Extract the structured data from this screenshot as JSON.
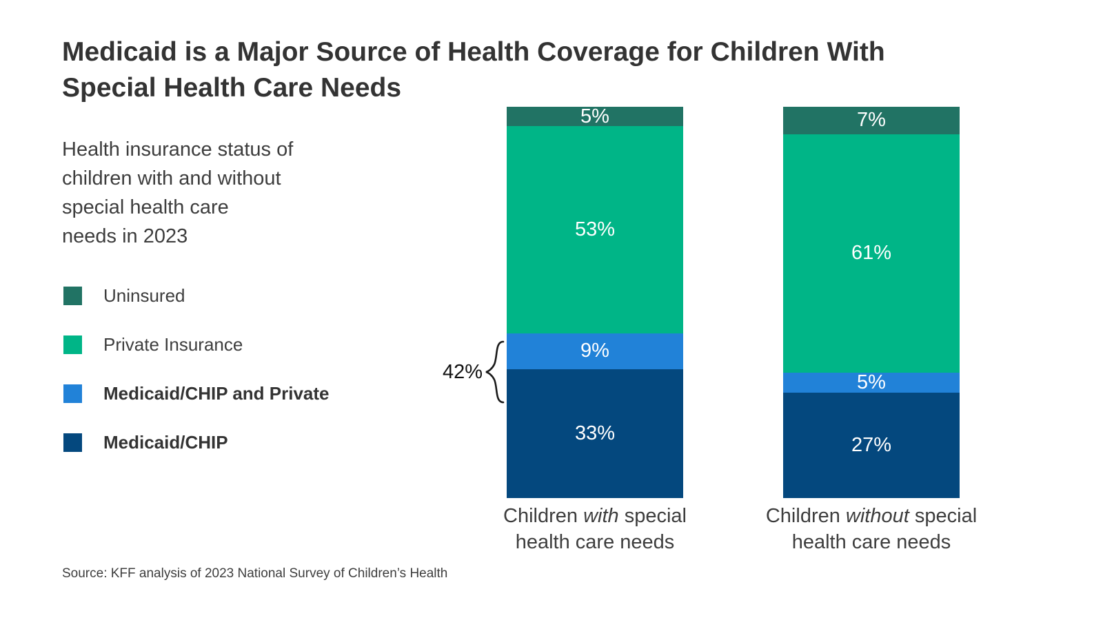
{
  "title": {
    "lines": [
      "Medicaid is a Major Source of Health Coverage for Children With",
      "Special Health Care Needs"
    ]
  },
  "subtitle": {
    "lines": [
      "Health insurance status of",
      "children with and without",
      "special health care",
      "needs in 2023"
    ]
  },
  "legend": [
    {
      "label": "Uninsured",
      "color": "#217364",
      "bold": false
    },
    {
      "label": "Private Insurance",
      "color": "#00B587",
      "bold": false
    },
    {
      "label": "Medicaid/CHIP and Private",
      "color": "#2182D8",
      "bold": true
    },
    {
      "label": "Medicaid/CHIP",
      "color": "#04487E",
      "bold": true
    }
  ],
  "chart_data": {
    "type": "bar",
    "stacked": true,
    "unit": "%",
    "ylim": [
      0,
      100
    ],
    "grid": false,
    "legend_position": "left",
    "categories": [
      "Children with special health care needs",
      "Children without special health care needs"
    ],
    "category_label_parts": [
      {
        "pre": "Children ",
        "italic": "with",
        "post": " special",
        "line2": "health care needs"
      },
      {
        "pre": "Children ",
        "italic": "without",
        "post": " special",
        "line2": "health care needs"
      }
    ],
    "series": [
      {
        "name": "Medicaid/CHIP",
        "color": "#04487E",
        "values": [
          33,
          27
        ]
      },
      {
        "name": "Medicaid/CHIP and Private",
        "color": "#2182D8",
        "values": [
          9,
          5
        ]
      },
      {
        "name": "Private Insurance",
        "color": "#00B587",
        "values": [
          53,
          61
        ]
      },
      {
        "name": "Uninsured",
        "color": "#217364",
        "values": [
          5,
          7
        ]
      }
    ],
    "annotation": {
      "text": "42%",
      "bar_index": 0,
      "covers": [
        "Medicaid/CHIP",
        "Medicaid/CHIP and Private"
      ]
    }
  },
  "source": "Source: KFF analysis of 2023 National Survey of Children’s Health"
}
